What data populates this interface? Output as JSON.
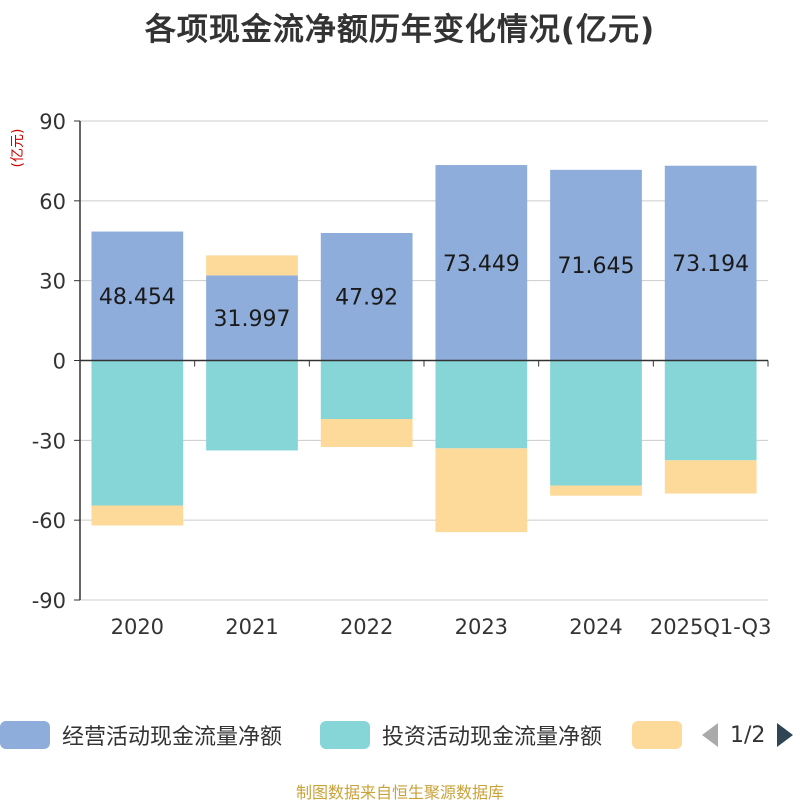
{
  "title": "各项现金流净额历年变化情况(亿元)",
  "source": "制图数据来自恒生聚源数据库",
  "pager": {
    "page": "1/2"
  },
  "chart_data": {
    "type": "bar",
    "stacked": true,
    "title": "各项现金流净额历年变化情况(亿元)",
    "ylabel": "(亿元)",
    "ylim": [
      -90,
      90
    ],
    "yticks": [
      90,
      60,
      30,
      0,
      -30,
      -60,
      -90
    ],
    "categories": [
      "2020",
      "2021",
      "2022",
      "2023",
      "2024",
      "2025Q1-Q3"
    ],
    "series": [
      {
        "name": "经营活动现金流量净额",
        "color": "#8eaddb",
        "values": [
          48.454,
          31.997,
          47.92,
          73.449,
          71.645,
          73.194
        ],
        "labels": [
          "48.454",
          "31.997",
          "47.92",
          "73.449",
          "71.645",
          "73.194"
        ]
      },
      {
        "name": "投资活动现金流量净额",
        "color": "#86d6d8",
        "values": [
          -54.5,
          -33.8,
          -22.0,
          -33.0,
          -47.0,
          -37.5
        ]
      },
      {
        "name": "",
        "color": "#fdd99a",
        "values": [
          -7.5,
          7.5,
          -10.5,
          -31.5,
          -3.8,
          -12.5
        ]
      }
    ]
  }
}
